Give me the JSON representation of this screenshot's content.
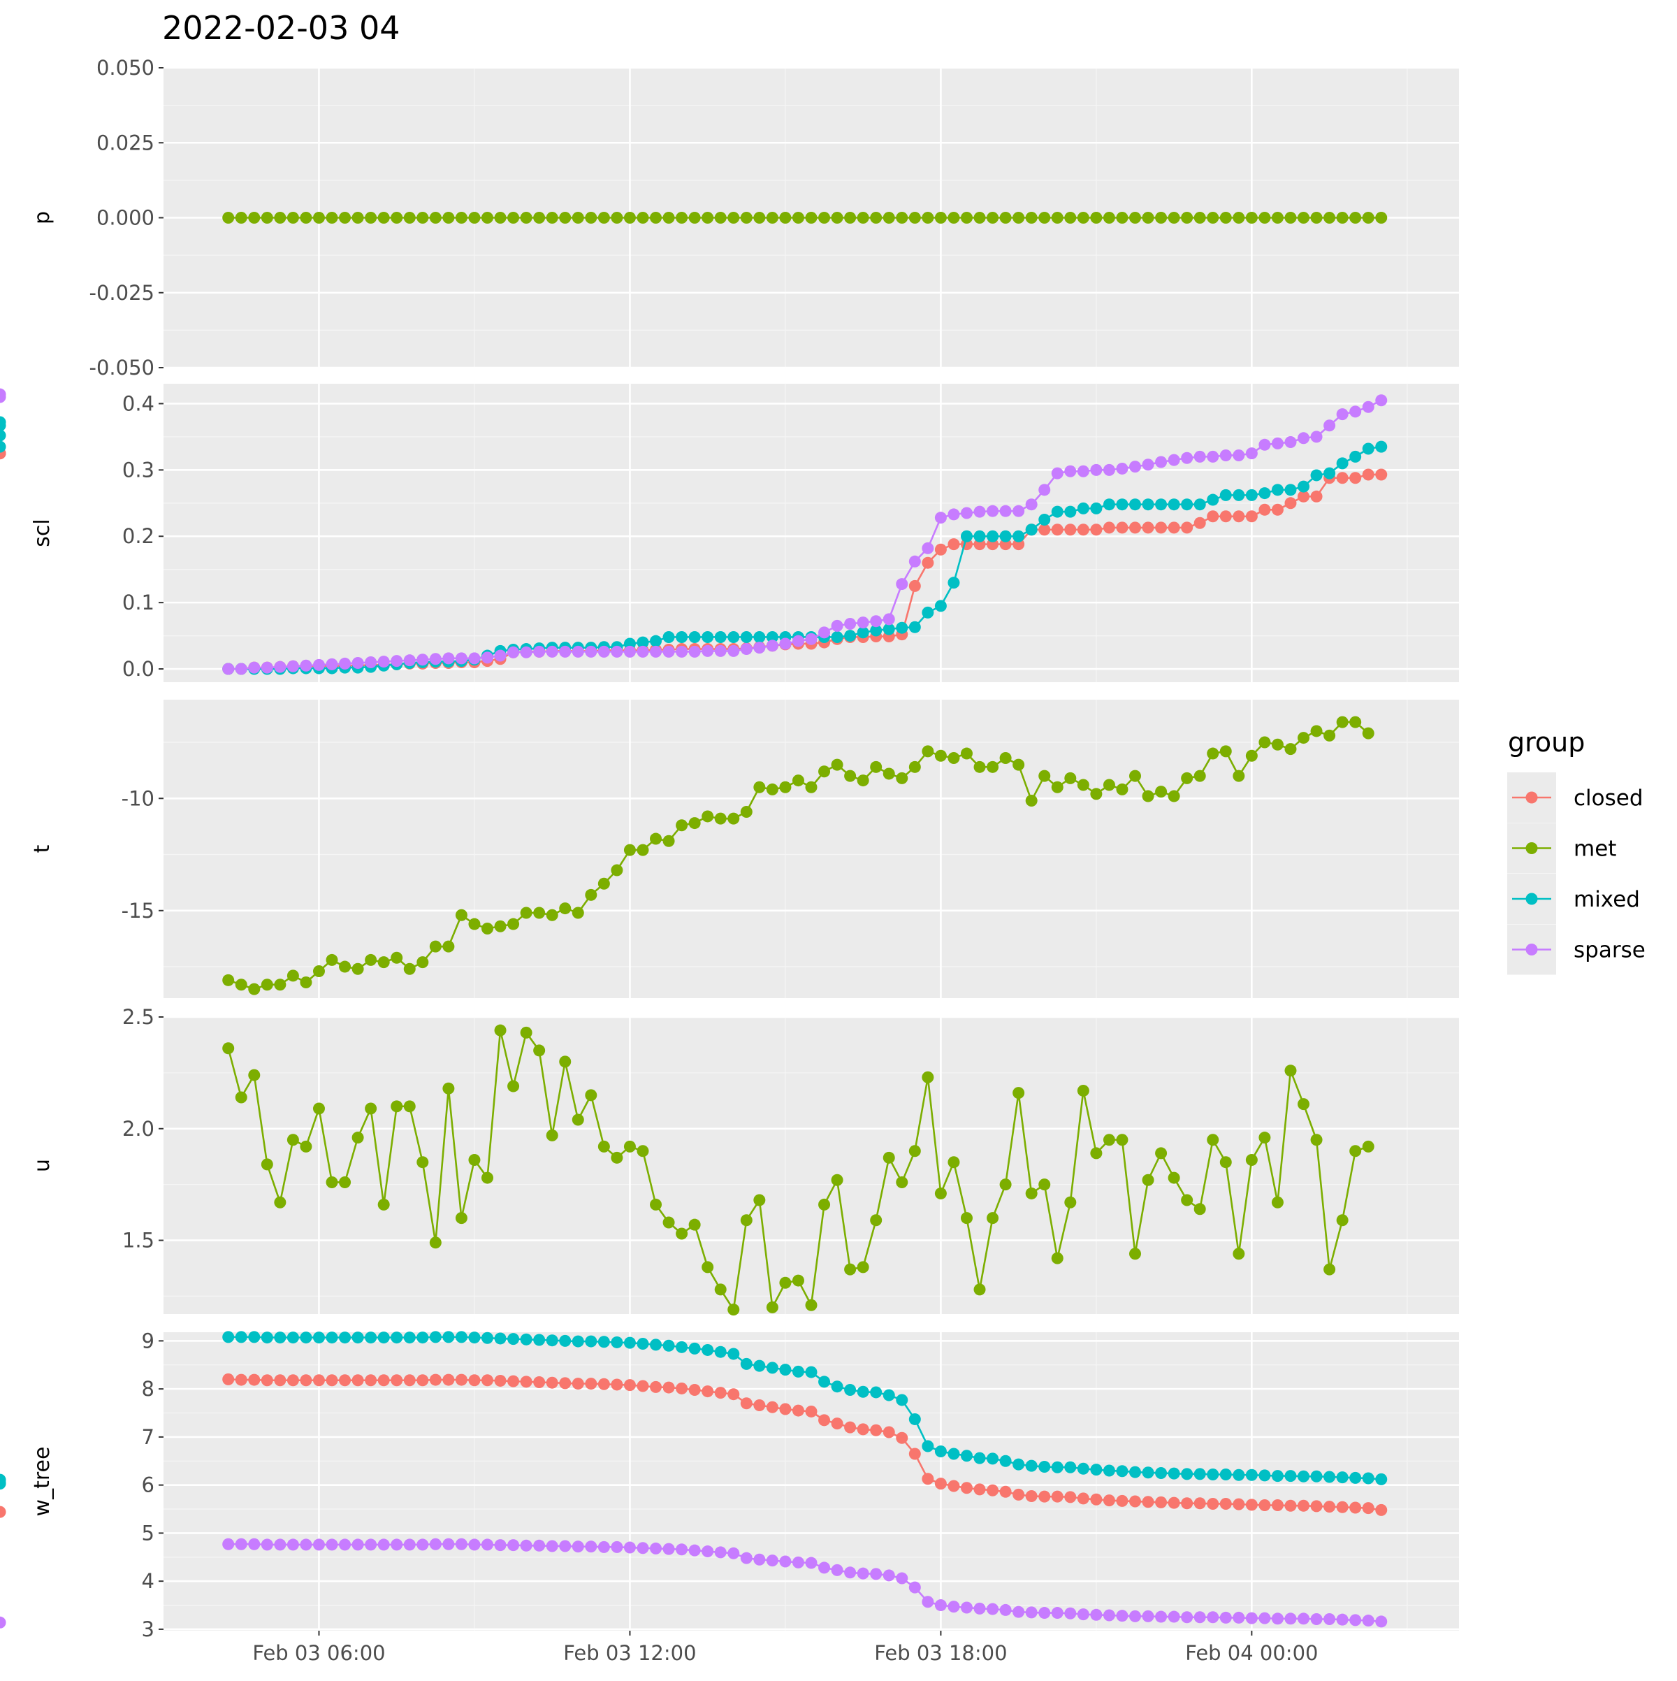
{
  "chart_data": {
    "type": "line",
    "title": "2022-02-03 04",
    "x_axis": {
      "unit": "hour",
      "range": [
        "2022-02-03 03:00",
        "2022-02-04 04:00"
      ],
      "tick_labels": [
        "Feb 03 06:00",
        "Feb 03 12:00",
        "Feb 03 18:00",
        "Feb 04 00:00"
      ],
      "ticks": [
        "2022-02-03 06:00",
        "2022-02-03 12:00",
        "2022-02-03 18:00",
        "2022-02-04 00:00"
      ]
    },
    "legend": {
      "title": "group",
      "position": "right",
      "entries": [
        {
          "name": "closed",
          "color": "#F8766D"
        },
        {
          "name": "met",
          "color": "#7CAE00"
        },
        {
          "name": "mixed",
          "color": "#00BFC4"
        },
        {
          "name": "sparse",
          "color": "#C77CFF"
        }
      ]
    },
    "grid": true,
    "background": "#EBEBEB",
    "series_times": {
      "start": "2022-02-03 04:15",
      "step_minutes": 15,
      "count": 90
    },
    "panels": [
      {
        "ylabel": "p",
        "ylim": [
          -0.05,
          0.05
        ],
        "yticks": [
          -0.05,
          -0.025,
          0,
          0.025,
          0.05
        ],
        "ytick_labels": [
          "-0.050",
          "-0.025",
          "0.000",
          "0.025",
          "0.050"
        ],
        "series": [
          {
            "name": "met",
            "values": [
              0,
              0,
              0,
              0,
              0,
              0,
              0,
              0,
              0,
              0,
              0,
              0,
              0,
              0,
              0,
              0,
              0,
              0,
              0,
              0,
              0,
              0,
              0,
              0,
              0,
              0,
              0,
              0,
              0,
              0,
              0,
              0,
              0,
              0,
              0,
              0,
              0,
              0,
              0,
              0,
              0,
              0,
              0,
              0,
              0,
              0,
              0,
              0,
              0,
              0,
              0,
              0,
              0,
              0,
              0,
              0,
              0,
              0,
              0,
              0,
              0,
              0,
              0,
              0,
              0,
              0,
              0,
              0,
              0,
              0,
              0,
              0,
              0,
              0,
              0,
              0,
              0,
              0,
              0,
              0,
              0,
              0,
              0,
              0,
              0,
              0,
              0,
              0,
              0,
              0
            ]
          }
        ]
      },
      {
        "ylabel": "scl",
        "ylim": [
          -0.02,
          0.43
        ],
        "yticks": [
          0,
          0.1,
          0.2,
          0.3,
          0.4
        ],
        "ytick_labels": [
          "0.0",
          "0.1",
          "0.2",
          "0.3",
          "0.4"
        ],
        "series": [
          {
            "name": "closed",
            "values": [
              0.0,
              0.0,
              0.002,
              0.002,
              0.003,
              0.004,
              0.004,
              0.004,
              0.004,
              0.005,
              0.005,
              0.006,
              0.006,
              0.007,
              0.008,
              0.008,
              0.009,
              0.009,
              0.01,
              0.01,
              0.012,
              0.015,
              0.025,
              0.026,
              0.026,
              0.027,
              0.027,
              0.027,
              0.027,
              0.028,
              0.028,
              0.028,
              0.028,
              0.029,
              0.029,
              0.03,
              0.03,
              0.03,
              0.03,
              0.03,
              0.031,
              0.033,
              0.035,
              0.037,
              0.038,
              0.038,
              0.04,
              0.045,
              0.048,
              0.048,
              0.049,
              0.049,
              0.052,
              0.125,
              0.16,
              0.18,
              0.188,
              0.188,
              0.188,
              0.188,
              0.188,
              0.188,
              0.21,
              0.21,
              0.21,
              0.21,
              0.21,
              0.21,
              0.213,
              0.213,
              0.213,
              0.213,
              0.213,
              0.213,
              0.213,
              0.22,
              0.23,
              0.23,
              0.23,
              0.23,
              0.24,
              0.24,
              0.25,
              0.26,
              0.26,
              0.288,
              0.288,
              0.288,
              0.293,
              0.293,
              0.325,
              0.325,
              0.325
            ]
          },
          {
            "name": "mixed",
            "values": [
              0.0,
              0.0,
              0.0,
              0.0,
              0.0,
              0.001,
              0.001,
              0.001,
              0.001,
              0.002,
              0.002,
              0.003,
              0.005,
              0.007,
              0.009,
              0.01,
              0.011,
              0.011,
              0.012,
              0.014,
              0.02,
              0.027,
              0.029,
              0.03,
              0.031,
              0.032,
              0.032,
              0.032,
              0.032,
              0.033,
              0.033,
              0.038,
              0.04,
              0.042,
              0.048,
              0.048,
              0.048,
              0.048,
              0.048,
              0.048,
              0.048,
              0.048,
              0.048,
              0.048,
              0.048,
              0.048,
              0.048,
              0.048,
              0.05,
              0.055,
              0.058,
              0.06,
              0.062,
              0.063,
              0.085,
              0.095,
              0.13,
              0.2,
              0.2,
              0.2,
              0.2,
              0.2,
              0.21,
              0.225,
              0.237,
              0.237,
              0.242,
              0.242,
              0.248,
              0.248,
              0.248,
              0.248,
              0.248,
              0.248,
              0.248,
              0.248,
              0.255,
              0.262,
              0.262,
              0.262,
              0.265,
              0.27,
              0.27,
              0.275,
              0.292,
              0.295,
              0.31,
              0.32,
              0.332,
              0.335,
              0.335,
              0.352,
              0.367,
              0.372
            ]
          },
          {
            "name": "sparse",
            "values": [
              0.0,
              0.0,
              0.002,
              0.002,
              0.003,
              0.004,
              0.005,
              0.006,
              0.007,
              0.008,
              0.009,
              0.01,
              0.011,
              0.012,
              0.013,
              0.014,
              0.015,
              0.016,
              0.016,
              0.016,
              0.017,
              0.02,
              0.025,
              0.025,
              0.026,
              0.026,
              0.026,
              0.026,
              0.026,
              0.026,
              0.026,
              0.026,
              0.026,
              0.026,
              0.026,
              0.026,
              0.026,
              0.027,
              0.027,
              0.027,
              0.03,
              0.032,
              0.035,
              0.038,
              0.042,
              0.045,
              0.055,
              0.065,
              0.068,
              0.07,
              0.072,
              0.075,
              0.128,
              0.162,
              0.182,
              0.228,
              0.233,
              0.235,
              0.237,
              0.238,
              0.238,
              0.238,
              0.248,
              0.27,
              0.295,
              0.298,
              0.298,
              0.3,
              0.3,
              0.302,
              0.305,
              0.308,
              0.312,
              0.315,
              0.318,
              0.32,
              0.32,
              0.322,
              0.322,
              0.325,
              0.338,
              0.34,
              0.342,
              0.348,
              0.35,
              0.367,
              0.384,
              0.388,
              0.395,
              0.405,
              0.41,
              0.414
            ]
          }
        ]
      },
      {
        "ylabel": "t",
        "ylim": [
          -18.9,
          -5.6
        ],
        "yticks": [
          -15,
          -10
        ],
        "ytick_labels": [
          "-15",
          "-10"
        ],
        "series": [
          {
            "name": "met",
            "values": [
              -18.1,
              -18.3,
              -18.5,
              -18.3,
              -18.3,
              -17.9,
              -18.2,
              -17.7,
              -17.2,
              -17.5,
              -17.6,
              -17.2,
              -17.3,
              -17.1,
              -17.6,
              -17.3,
              -16.6,
              -16.6,
              -15.2,
              -15.6,
              -15.8,
              -15.7,
              -15.6,
              -15.1,
              -15.1,
              -15.2,
              -14.9,
              -15.1,
              -14.3,
              -13.8,
              -13.2,
              -12.3,
              -12.3,
              -11.8,
              -11.9,
              -11.2,
              -11.1,
              -10.8,
              -10.9,
              -10.9,
              -10.6,
              -9.5,
              -9.6,
              -9.5,
              -9.2,
              -9.5,
              -8.8,
              -8.5,
              -9.0,
              -9.2,
              -8.6,
              -8.9,
              -9.1,
              -8.6,
              -7.9,
              -8.1,
              -8.2,
              -8.0,
              -8.6,
              -8.6,
              -8.2,
              -8.5,
              -10.1,
              -9.0,
              -9.5,
              -9.1,
              -9.4,
              -9.8,
              -9.4,
              -9.6,
              -9.0,
              -9.9,
              -9.7,
              -9.9,
              -9.1,
              -9.0,
              -8.0,
              -7.9,
              -9.0,
              -8.1,
              -7.5,
              -7.6,
              -7.8,
              -7.3,
              -7.0,
              -7.2,
              -6.6,
              -6.6,
              -7.1
            ]
          }
        ]
      },
      {
        "ylabel": "u",
        "ylim": [
          1.17,
          2.5
        ],
        "yticks": [
          1.5,
          2.0,
          2.5
        ],
        "ytick_labels": [
          "1.5",
          "2.0",
          "2.5"
        ],
        "series": [
          {
            "name": "met",
            "values": [
              2.36,
              2.14,
              2.24,
              1.84,
              1.67,
              1.95,
              1.92,
              2.09,
              1.76,
              1.76,
              1.96,
              2.09,
              1.66,
              2.1,
              2.1,
              1.85,
              1.49,
              2.18,
              1.6,
              1.86,
              1.78,
              2.44,
              2.19,
              2.43,
              2.35,
              1.97,
              2.3,
              2.04,
              2.15,
              1.92,
              1.87,
              1.92,
              1.9,
              1.66,
              1.58,
              1.53,
              1.57,
              1.38,
              1.28,
              1.19,
              1.59,
              1.68,
              1.2,
              1.31,
              1.32,
              1.21,
              1.66,
              1.77,
              1.37,
              1.38,
              1.59,
              1.87,
              1.76,
              1.9,
              2.23,
              1.71,
              1.85,
              1.6,
              1.28,
              1.6,
              1.75,
              2.16,
              1.71,
              1.75,
              1.42,
              1.67,
              2.17,
              1.89,
              1.95,
              1.95,
              1.44,
              1.77,
              1.89,
              1.78,
              1.68,
              1.64,
              1.95,
              1.85,
              1.44,
              1.86,
              1.96,
              1.67,
              2.26,
              2.11,
              1.95,
              1.37,
              1.59,
              1.9,
              1.92
            ]
          }
        ]
      },
      {
        "ylabel": "w_tree",
        "ylim": [
          2.97,
          9.18
        ],
        "yticks": [
          3,
          4,
          5,
          6,
          7,
          8,
          9
        ],
        "ytick_labels": [
          "3",
          "4",
          "5",
          "6",
          "7",
          "8",
          "9"
        ],
        "series": [
          {
            "name": "closed",
            "values": [
              8.2,
              8.19,
              8.19,
              8.18,
              8.18,
              8.18,
              8.18,
              8.18,
              8.18,
              8.18,
              8.18,
              8.18,
              8.18,
              8.18,
              8.18,
              8.18,
              8.19,
              8.19,
              8.19,
              8.18,
              8.18,
              8.17,
              8.16,
              8.15,
              8.14,
              8.13,
              8.12,
              8.11,
              8.11,
              8.1,
              8.09,
              8.08,
              8.06,
              8.04,
              8.03,
              8.01,
              7.98,
              7.95,
              7.92,
              7.89,
              7.7,
              7.66,
              7.62,
              7.58,
              7.55,
              7.53,
              7.35,
              7.28,
              7.2,
              7.16,
              7.14,
              7.1,
              6.98,
              6.65,
              6.13,
              6.03,
              5.98,
              5.94,
              5.91,
              5.89,
              5.86,
              5.8,
              5.77,
              5.76,
              5.76,
              5.75,
              5.72,
              5.7,
              5.68,
              5.67,
              5.66,
              5.65,
              5.64,
              5.63,
              5.62,
              5.62,
              5.61,
              5.61,
              5.6,
              5.59,
              5.58,
              5.58,
              5.57,
              5.57,
              5.56,
              5.55,
              5.54,
              5.53,
              5.52,
              5.48,
              5.44
            ]
          },
          {
            "name": "mixed",
            "values": [
              9.08,
              9.08,
              9.08,
              9.07,
              9.07,
              9.07,
              9.07,
              9.07,
              9.07,
              9.07,
              9.07,
              9.07,
              9.07,
              9.07,
              9.07,
              9.07,
              9.08,
              9.08,
              9.08,
              9.07,
              9.06,
              9.05,
              9.04,
              9.03,
              9.02,
              9.01,
              9.0,
              8.99,
              8.99,
              8.98,
              8.97,
              8.96,
              8.94,
              8.92,
              8.9,
              8.87,
              8.84,
              8.81,
              8.77,
              8.73,
              8.52,
              8.48,
              8.44,
              8.4,
              8.36,
              8.35,
              8.15,
              8.05,
              7.98,
              7.94,
              7.93,
              7.87,
              7.77,
              7.37,
              6.81,
              6.7,
              6.65,
              6.61,
              6.56,
              6.55,
              6.5,
              6.43,
              6.4,
              6.38,
              6.37,
              6.37,
              6.34,
              6.32,
              6.3,
              6.29,
              6.27,
              6.26,
              6.25,
              6.24,
              6.23,
              6.23,
              6.22,
              6.22,
              6.21,
              6.21,
              6.2,
              6.19,
              6.19,
              6.18,
              6.18,
              6.17,
              6.16,
              6.15,
              6.14,
              6.12,
              6.11,
              6.05,
              6.03
            ]
          },
          {
            "name": "sparse",
            "values": [
              4.77,
              4.77,
              4.77,
              4.76,
              4.76,
              4.76,
              4.76,
              4.76,
              4.76,
              4.76,
              4.76,
              4.76,
              4.76,
              4.76,
              4.76,
              4.76,
              4.77,
              4.77,
              4.77,
              4.76,
              4.76,
              4.75,
              4.75,
              4.74,
              4.74,
              4.73,
              4.73,
              4.72,
              4.72,
              4.71,
              4.71,
              4.7,
              4.69,
              4.68,
              4.67,
              4.66,
              4.64,
              4.62,
              4.6,
              4.58,
              4.48,
              4.45,
              4.43,
              4.41,
              4.39,
              4.38,
              4.28,
              4.23,
              4.18,
              4.16,
              4.15,
              4.12,
              4.06,
              3.87,
              3.57,
              3.5,
              3.47,
              3.45,
              3.43,
              3.42,
              3.4,
              3.36,
              3.35,
              3.34,
              3.34,
              3.33,
              3.31,
              3.3,
              3.29,
              3.28,
              3.27,
              3.27,
              3.26,
              3.26,
              3.25,
              3.25,
              3.25,
              3.24,
              3.24,
              3.23,
              3.23,
              3.22,
              3.22,
              3.22,
              3.21,
              3.21,
              3.2,
              3.19,
              3.18,
              3.16,
              3.14
            ]
          }
        ]
      }
    ]
  }
}
